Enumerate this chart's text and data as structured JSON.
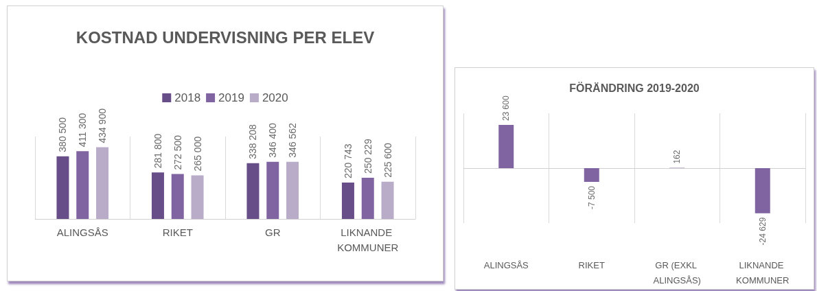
{
  "chart_data": [
    {
      "type": "bar",
      "title": "KOSTNAD UNDERVISNING PER ELEV",
      "categories": [
        "ALINGSÅS",
        "RIKET",
        "GR",
        "LIKNANDE KOMMUNER"
      ],
      "series": [
        {
          "name": "2018",
          "color": "#684e88",
          "values": [
            380500,
            281800,
            338208,
            220743
          ],
          "value_labels": [
            "380 500",
            "281 800",
            "338 208",
            "220 743"
          ]
        },
        {
          "name": "2019",
          "color": "#8064a2",
          "values": [
            411300,
            272500,
            346400,
            250229
          ],
          "value_labels": [
            "411 300",
            "272 500",
            "346 400",
            "250 229"
          ]
        },
        {
          "name": "2020",
          "color": "#b8acc9",
          "values": [
            434900,
            265000,
            346562,
            225600
          ],
          "value_labels": [
            "434 900",
            "265 000",
            "346 562",
            "225 600"
          ]
        }
      ],
      "legend": "top",
      "grid": "x"
    },
    {
      "type": "bar",
      "title": "FÖRÄNDRING 2019-2020",
      "categories": [
        "ALINGSÅS",
        "RIKET",
        "GR (EXKL ALINGSÅS)",
        "LIKNANDE KOMMUNER"
      ],
      "series": [
        {
          "color": "#8064a2",
          "values": [
            23600,
            -7500,
            162,
            -24629
          ],
          "value_labels": [
            "23 600",
            "-7 500",
            "162",
            "-24 629"
          ]
        }
      ],
      "legend": false,
      "grid": "x"
    }
  ]
}
